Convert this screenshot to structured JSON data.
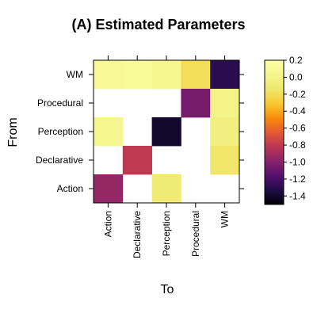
{
  "chart_data": {
    "type": "heatmap",
    "title": "(A) Estimated Parameters",
    "xlabel": "To",
    "ylabel": "From",
    "x_categories": [
      "Action",
      "Declarative",
      "Perception",
      "Procedural",
      "WM"
    ],
    "y_categories": [
      "Action",
      "Declarative",
      "Perception",
      "Procedural",
      "WM"
    ],
    "cells": [
      {
        "from": "WM",
        "to": "Action",
        "value": 0.1
      },
      {
        "from": "WM",
        "to": "Declarative",
        "value": 0.12
      },
      {
        "from": "WM",
        "to": "Perception",
        "value": 0.05
      },
      {
        "from": "WM",
        "to": "Procedural",
        "value": -0.2
      },
      {
        "from": "WM",
        "to": "WM",
        "value": -1.3
      },
      {
        "from": "Procedural",
        "to": "Procedural",
        "value": -1.05
      },
      {
        "from": "Procedural",
        "to": "WM",
        "value": 0.0
      },
      {
        "from": "Perception",
        "to": "Action",
        "value": 0.05
      },
      {
        "from": "Perception",
        "to": "Perception",
        "value": -1.4
      },
      {
        "from": "Perception",
        "to": "WM",
        "value": -0.05
      },
      {
        "from": "Declarative",
        "to": "Declarative",
        "value": -0.8
      },
      {
        "from": "Declarative",
        "to": "WM",
        "value": -0.15
      },
      {
        "from": "Action",
        "to": "Action",
        "value": -0.95
      },
      {
        "from": "Action",
        "to": "Perception",
        "value": -0.1
      }
    ],
    "colorbar": {
      "min": -1.5,
      "max": 0.2,
      "ticks": [
        0.2,
        0.0,
        -0.2,
        -0.4,
        -0.6,
        -0.8,
        -1.0,
        -1.2,
        -1.4
      ],
      "tick_labels": [
        "0.2",
        "0.0",
        "-0.2",
        "-0.4",
        "-0.6",
        "-0.8",
        "-1.0",
        "-1.2",
        "-1.4"
      ],
      "colormap": "inferno"
    },
    "grid": false
  }
}
